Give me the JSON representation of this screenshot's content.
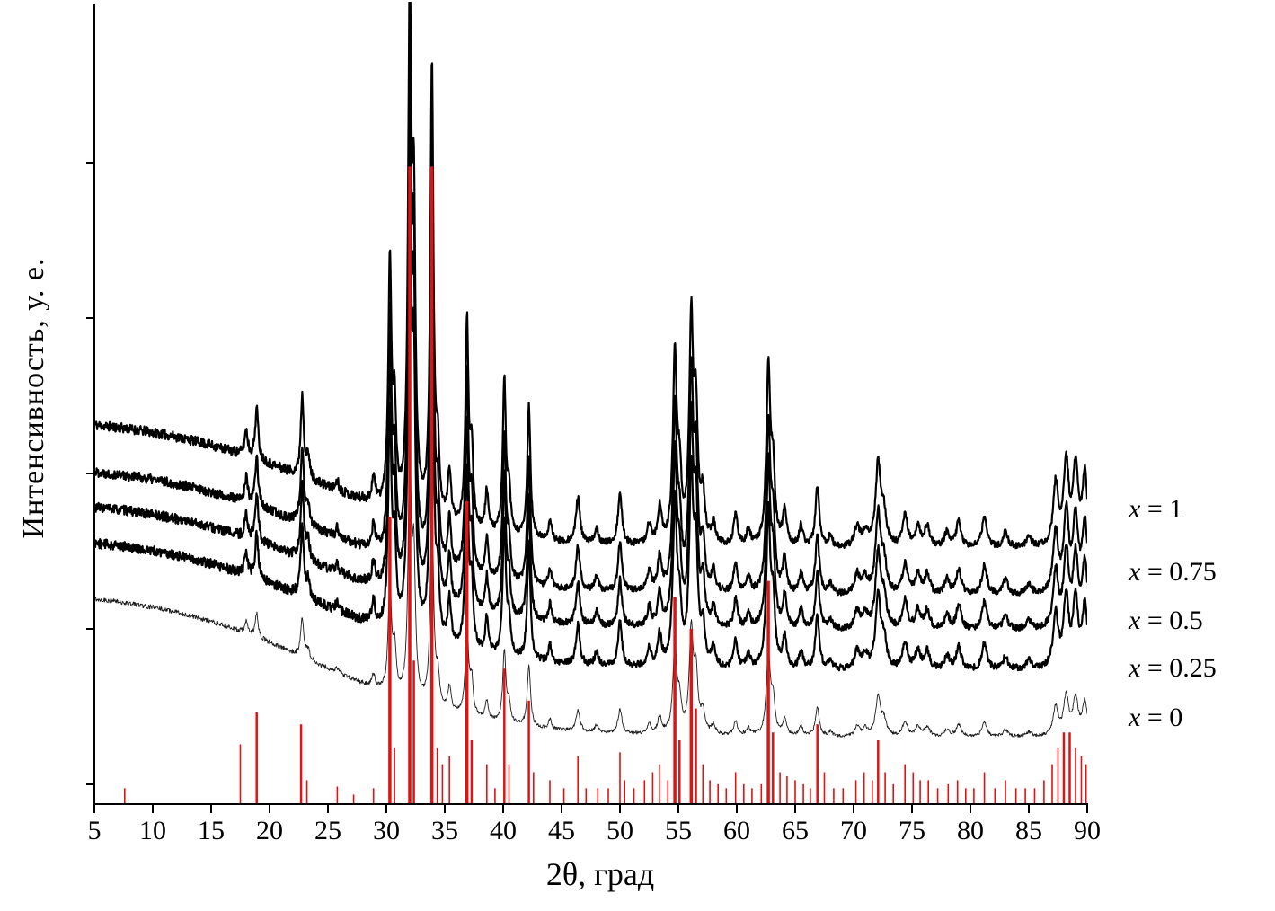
{
  "figure": {
    "background": "#ffffff"
  },
  "chart_data": {
    "type": "line",
    "title": "",
    "xlabel": "2θ, град",
    "ylabel": "Интенсивность, у. е.",
    "xlim": [
      5,
      90
    ],
    "ylim_units": [
      0,
      1000
    ],
    "grid": false,
    "legend_position": "right-outside",
    "x_ticks": [
      5,
      10,
      15,
      20,
      25,
      30,
      35,
      40,
      45,
      50,
      55,
      60,
      65,
      70,
      75,
      80,
      85,
      90
    ],
    "reference_color": "#e01212",
    "peaks": [
      [
        18.0,
        5
      ],
      [
        18.9,
        10
      ],
      [
        22.8,
        16
      ],
      [
        23.3,
        4
      ],
      [
        25.8,
        2
      ],
      [
        28.9,
        5
      ],
      [
        30.3,
        48
      ],
      [
        30.7,
        18
      ],
      [
        32.0,
        100
      ],
      [
        32.35,
        55
      ],
      [
        33.9,
        88
      ],
      [
        34.4,
        12
      ],
      [
        35.4,
        10
      ],
      [
        36.9,
        40
      ],
      [
        37.3,
        14
      ],
      [
        38.6,
        8
      ],
      [
        40.1,
        30
      ],
      [
        40.5,
        8
      ],
      [
        42.2,
        26
      ],
      [
        44.0,
        4
      ],
      [
        46.4,
        9
      ],
      [
        48.0,
        3
      ],
      [
        50.0,
        10
      ],
      [
        52.5,
        4
      ],
      [
        53.4,
        7
      ],
      [
        54.7,
        36
      ],
      [
        55.1,
        12
      ],
      [
        56.1,
        42
      ],
      [
        56.5,
        24
      ],
      [
        57.1,
        9
      ],
      [
        58.0,
        4
      ],
      [
        59.9,
        6
      ],
      [
        61.0,
        3
      ],
      [
        62.7,
        34
      ],
      [
        63.1,
        14
      ],
      [
        64.1,
        7
      ],
      [
        65.5,
        4
      ],
      [
        66.9,
        12
      ],
      [
        68.0,
        2
      ],
      [
        70.3,
        4
      ],
      [
        71.0,
        3
      ],
      [
        72.1,
        16
      ],
      [
        72.6,
        6
      ],
      [
        74.4,
        6
      ],
      [
        75.5,
        4
      ],
      [
        76.3,
        4
      ],
      [
        78.0,
        3
      ],
      [
        79.0,
        5
      ],
      [
        81.2,
        6
      ],
      [
        83.0,
        3
      ],
      [
        85.0,
        2
      ],
      [
        87.3,
        12
      ],
      [
        88.2,
        16
      ],
      [
        89.0,
        15
      ],
      [
        89.8,
        14
      ]
    ],
    "series": [
      {
        "label": "x = 1",
        "baseline": 321,
        "bg_amp": 165,
        "peak_scale": 6.4,
        "line_width": 2.2,
        "noise": 4,
        "seed": 11,
        "color": "#000000"
      },
      {
        "label": "x = 0.75",
        "baseline": 262,
        "bg_amp": 165,
        "peak_scale": 6.2,
        "line_width": 2.2,
        "noise": 4,
        "seed": 22,
        "color": "#000000"
      },
      {
        "label": "x = 0.5",
        "baseline": 218,
        "bg_amp": 165,
        "peak_scale": 5.9,
        "line_width": 2.2,
        "noise": 4,
        "seed": 33,
        "color": "#000000"
      },
      {
        "label": "x = 0.25",
        "baseline": 168,
        "bg_amp": 170,
        "peak_scale": 5.6,
        "line_width": 2.2,
        "noise": 4,
        "seed": 44,
        "color": "#000000"
      },
      {
        "label": "x = 0",
        "baseline": 84,
        "bg_amp": 185,
        "peak_scale": 3.0,
        "line_width": 0.9,
        "noise": 2,
        "seed": 55,
        "color": "#1a1a1a"
      }
    ],
    "reference_sticks": [
      [
        7.6,
        0.02
      ],
      [
        17.5,
        0.075
      ],
      [
        18.9,
        0.115
      ],
      [
        22.7,
        0.1
      ],
      [
        23.2,
        0.03
      ],
      [
        25.8,
        0.022
      ],
      [
        27.2,
        0.012
      ],
      [
        28.9,
        0.02
      ],
      [
        30.3,
        0.36
      ],
      [
        30.7,
        0.07
      ],
      [
        32.0,
        0.8
      ],
      [
        32.35,
        0.18
      ],
      [
        33.9,
        0.8
      ],
      [
        34.35,
        0.07
      ],
      [
        34.8,
        0.05
      ],
      [
        35.4,
        0.06
      ],
      [
        36.9,
        0.38
      ],
      [
        37.3,
        0.08
      ],
      [
        38.6,
        0.05
      ],
      [
        39.3,
        0.02
      ],
      [
        40.1,
        0.17
      ],
      [
        40.5,
        0.05
      ],
      [
        42.2,
        0.13
      ],
      [
        42.6,
        0.04
      ],
      [
        44.0,
        0.03
      ],
      [
        45.2,
        0.02
      ],
      [
        46.4,
        0.06
      ],
      [
        47.1,
        0.02
      ],
      [
        48.1,
        0.02
      ],
      [
        49.0,
        0.02
      ],
      [
        50.0,
        0.065
      ],
      [
        50.4,
        0.03
      ],
      [
        51.2,
        0.02
      ],
      [
        52.1,
        0.03
      ],
      [
        52.8,
        0.04
      ],
      [
        53.4,
        0.05
      ],
      [
        54.1,
        0.03
      ],
      [
        54.7,
        0.26
      ],
      [
        55.1,
        0.08
      ],
      [
        56.1,
        0.22
      ],
      [
        56.5,
        0.12
      ],
      [
        57.1,
        0.05
      ],
      [
        57.7,
        0.03
      ],
      [
        58.4,
        0.025
      ],
      [
        59.1,
        0.02
      ],
      [
        59.9,
        0.04
      ],
      [
        60.6,
        0.025
      ],
      [
        61.3,
        0.02
      ],
      [
        62.1,
        0.025
      ],
      [
        62.7,
        0.28
      ],
      [
        63.1,
        0.09
      ],
      [
        63.7,
        0.04
      ],
      [
        64.3,
        0.035
      ],
      [
        65.0,
        0.03
      ],
      [
        65.7,
        0.025
      ],
      [
        66.3,
        0.02
      ],
      [
        66.9,
        0.1
      ],
      [
        67.5,
        0.04
      ],
      [
        68.3,
        0.02
      ],
      [
        69.1,
        0.02
      ],
      [
        70.2,
        0.03
      ],
      [
        70.9,
        0.04
      ],
      [
        71.6,
        0.03
      ],
      [
        72.1,
        0.08
      ],
      [
        72.7,
        0.04
      ],
      [
        73.4,
        0.025
      ],
      [
        74.4,
        0.05
      ],
      [
        75.1,
        0.04
      ],
      [
        75.7,
        0.03
      ],
      [
        76.4,
        0.03
      ],
      [
        77.2,
        0.02
      ],
      [
        78.1,
        0.025
      ],
      [
        78.9,
        0.03
      ],
      [
        79.6,
        0.02
      ],
      [
        80.3,
        0.02
      ],
      [
        81.2,
        0.04
      ],
      [
        82.1,
        0.02
      ],
      [
        83.0,
        0.03
      ],
      [
        83.9,
        0.02
      ],
      [
        84.7,
        0.02
      ],
      [
        85.5,
        0.02
      ],
      [
        86.3,
        0.03
      ],
      [
        87.0,
        0.05
      ],
      [
        87.5,
        0.07
      ],
      [
        88.0,
        0.09
      ],
      [
        88.5,
        0.09
      ],
      [
        89.0,
        0.07
      ],
      [
        89.5,
        0.06
      ],
      [
        89.9,
        0.05
      ]
    ]
  }
}
